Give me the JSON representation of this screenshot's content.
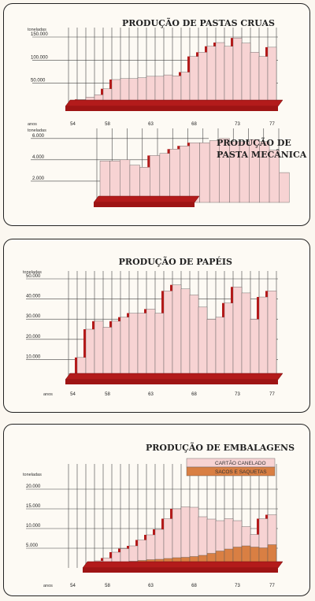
{
  "chart_data": [
    {
      "type": "bar",
      "title": "PRODUÇÃO DE PASTAS CRUAS",
      "ylabel": "toneladas",
      "xlabel": "anos",
      "x_tick_labels": [
        "54",
        "58",
        "63",
        "68",
        "73",
        "77"
      ],
      "y_tick_labels": [
        "50.000",
        "100.000",
        "150.000"
      ],
      "ylim": [
        0,
        160000
      ],
      "categories": [
        "1954",
        "1955",
        "1956",
        "1957",
        "1958",
        "1959",
        "1960",
        "1961",
        "1962",
        "1963",
        "1964",
        "1965",
        "1966",
        "1967",
        "1968",
        "1969",
        "1970",
        "1971",
        "1972",
        "1973",
        "1974",
        "1975",
        "1976",
        "1977"
      ],
      "values": [
        8000,
        15000,
        20000,
        25000,
        38000,
        58000,
        60000,
        60000,
        62000,
        65000,
        65000,
        68000,
        66000,
        74000,
        108000,
        117000,
        130000,
        138000,
        130000,
        148000,
        137000,
        117000,
        108000,
        128000
      ]
    },
    {
      "type": "bar",
      "title": "PRODUÇÃO DE PASTA MECÂNICA",
      "ylabel": "toneladas",
      "y_tick_labels": [
        "2.000",
        "4.000",
        "6.000"
      ],
      "ylim": [
        0,
        6500
      ],
      "categories": [
        "1959",
        "1960",
        "1961",
        "1962",
        "1963",
        "1964",
        "1965",
        "1966",
        "1967",
        "1968",
        "1969",
        "1970",
        "1971",
        "1972",
        "1973",
        "1974",
        "1975",
        "1976",
        "1977"
      ],
      "values": [
        3900,
        3900,
        4000,
        3500,
        3300,
        4400,
        4600,
        5000,
        5300,
        5600,
        5600,
        5800,
        6000,
        5700,
        5700,
        5900,
        5700,
        4900,
        2800
      ]
    },
    {
      "type": "bar",
      "title": "PRODUÇÃO DE PAPÉIS",
      "ylabel": "toneladas",
      "xlabel": "anos",
      "x_tick_labels": [
        "54",
        "58",
        "63",
        "68",
        "73",
        "77"
      ],
      "y_tick_labels": [
        "10.000",
        "20.000",
        "30.000",
        "40.000",
        "50.000"
      ],
      "ylim": [
        0,
        52000
      ],
      "categories": [
        "1954",
        "1955",
        "1956",
        "1957",
        "1958",
        "1959",
        "1960",
        "1961",
        "1962",
        "1963",
        "1964",
        "1965",
        "1966",
        "1967",
        "1968",
        "1969",
        "1970",
        "1971",
        "1972",
        "1973",
        "1974",
        "1975",
        "1976",
        "1977"
      ],
      "values": [
        3000,
        11000,
        25000,
        29000,
        26000,
        29000,
        31000,
        33000,
        33000,
        35000,
        33000,
        44000,
        47000,
        45000,
        42000,
        36000,
        30000,
        31000,
        38000,
        46000,
        43000,
        30000,
        41000,
        44000
      ]
    },
    {
      "type": "bar",
      "title": "PRODUÇÃO DE EMBALAGENS",
      "ylabel": "toneladas",
      "xlabel": "anos",
      "x_tick_labels": [
        "54",
        "58",
        "63",
        "68",
        "73",
        "77"
      ],
      "y_tick_labels": [
        "5.000",
        "10.000",
        "15.000",
        "20.000"
      ],
      "ylim": [
        0,
        21000
      ],
      "categories": [
        "1954",
        "1955",
        "1956",
        "1957",
        "1958",
        "1959",
        "1960",
        "1961",
        "1962",
        "1963",
        "1964",
        "1965",
        "1966",
        "1967",
        "1968",
        "1969",
        "1970",
        "1971",
        "1972",
        "1973",
        "1974",
        "1975",
        "1976",
        "1977"
      ],
      "series": [
        {
          "name": "CARTÃO CANELADO",
          "values": [
            null,
            null,
            1200,
            1800,
            2500,
            4000,
            4900,
            5600,
            7100,
            8400,
            9800,
            12500,
            15000,
            15500,
            15400,
            13000,
            12400,
            12000,
            12500,
            12000,
            10500,
            8500,
            12500,
            13500
          ]
        },
        {
          "name": "SACOS E SAQUETAS",
          "values": [
            null,
            null,
            600,
            900,
            1000,
            1300,
            1500,
            1700,
            1900,
            2100,
            2200,
            2400,
            2600,
            2700,
            2900,
            3200,
            3700,
            4300,
            4800,
            5300,
            5600,
            5300,
            5100,
            5900
          ]
        }
      ],
      "colors": {
        "cartao": "#f7d3d3",
        "sacos": "#d97f43"
      }
    }
  ]
}
